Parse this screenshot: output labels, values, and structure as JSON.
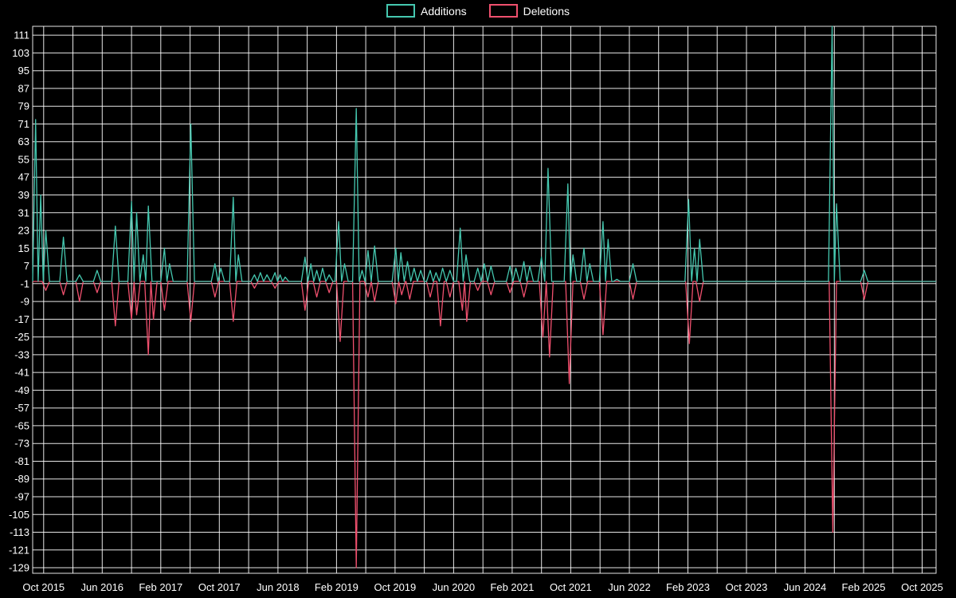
{
  "colors": {
    "background": "#000000",
    "grid": "#ffffff",
    "text": "#ffffff",
    "additions": "#45c8b0",
    "deletions": "#f0506e"
  },
  "chart_data": {
    "type": "line",
    "title": "",
    "xlabel": "",
    "ylabel": "",
    "x_unit": "months since Oct 2015",
    "grid": true,
    "legend_position": "top-center",
    "background": "#000000",
    "grid_color": "#ffffff",
    "text_color": "#ffffff",
    "x_range": [
      -1.5,
      121.9
    ],
    "y_range": [
      -131.5,
      115
    ],
    "x_grid": {
      "start": 0,
      "end": 120,
      "step": 4
    },
    "x_tick_months": [
      0,
      8,
      16,
      24,
      32,
      40,
      48,
      56,
      64,
      72,
      80,
      88,
      96,
      104,
      112,
      120
    ],
    "x_tick_labels": [
      "Oct 2015",
      "Jun 2016",
      "Feb 2017",
      "Oct 2017",
      "Jun 2018",
      "Feb 2019",
      "Oct 2019",
      "Jun 2020",
      "Feb 2021",
      "Oct 2021",
      "Jun 2022",
      "Feb 2023",
      "Oct 2023",
      "Jun 2024",
      "Feb 2025",
      "Oct 2025"
    ],
    "y_ticks": [
      111,
      103,
      95,
      87,
      79,
      71,
      63,
      55,
      47,
      39,
      31,
      23,
      15,
      7,
      -1,
      -9,
      -17,
      -25,
      -33,
      -41,
      -49,
      -57,
      -65,
      -73,
      -81,
      -89,
      -97,
      -105,
      -113,
      -121,
      -129
    ],
    "baseline": 0,
    "series": [
      {
        "name": "Additions",
        "color": "#45c8b0",
        "points": [
          [
            -1.1,
            73
          ],
          [
            -0.4,
            39
          ],
          [
            0.3,
            23
          ],
          [
            2.7,
            20
          ],
          [
            4.9,
            3
          ],
          [
            7.3,
            5
          ],
          [
            9.8,
            25
          ],
          [
            12.0,
            36
          ],
          [
            12.7,
            31
          ],
          [
            13.6,
            12
          ],
          [
            14.3,
            34
          ],
          [
            16.5,
            15
          ],
          [
            17.2,
            8
          ],
          [
            20.1,
            71
          ],
          [
            23.4,
            8
          ],
          [
            24.2,
            6
          ],
          [
            25.9,
            38
          ],
          [
            26.6,
            12
          ],
          [
            28.8,
            3
          ],
          [
            29.6,
            4
          ],
          [
            30.5,
            3
          ],
          [
            31.6,
            4
          ],
          [
            32.3,
            3
          ],
          [
            33.0,
            2
          ],
          [
            35.7,
            11
          ],
          [
            36.5,
            8
          ],
          [
            37.3,
            5
          ],
          [
            38.1,
            6
          ],
          [
            39.0,
            3
          ],
          [
            40.3,
            27
          ],
          [
            41.1,
            8
          ],
          [
            42.7,
            78
          ],
          [
            43.5,
            5
          ],
          [
            44.3,
            14
          ],
          [
            45.2,
            16
          ],
          [
            48.1,
            15
          ],
          [
            48.8,
            13
          ],
          [
            49.7,
            9
          ],
          [
            50.6,
            6
          ],
          [
            51.5,
            5
          ],
          [
            52.8,
            5
          ],
          [
            53.6,
            4
          ],
          [
            54.5,
            6
          ],
          [
            55.5,
            5
          ],
          [
            56.9,
            24
          ],
          [
            57.7,
            12
          ],
          [
            59.3,
            6
          ],
          [
            60.2,
            8
          ],
          [
            61.1,
            7
          ],
          [
            63.7,
            7
          ],
          [
            64.5,
            6
          ],
          [
            65.6,
            9
          ],
          [
            66.4,
            7
          ],
          [
            68.0,
            11
          ],
          [
            68.9,
            51
          ],
          [
            71.6,
            44
          ],
          [
            72.3,
            12
          ],
          [
            73.8,
            15
          ],
          [
            74.6,
            8
          ],
          [
            76.4,
            27
          ],
          [
            77.1,
            19
          ],
          [
            78.3,
            1
          ],
          [
            80.5,
            8
          ],
          [
            88.1,
            37
          ],
          [
            88.9,
            15
          ],
          [
            89.6,
            19
          ],
          [
            107.7,
            115
          ],
          [
            108.3,
            35
          ],
          [
            112.1,
            5
          ]
        ]
      },
      {
        "name": "Deletions",
        "color": "#f0506e",
        "points": [
          [
            0.3,
            -4
          ],
          [
            2.7,
            -6
          ],
          [
            4.9,
            -9
          ],
          [
            7.3,
            -5
          ],
          [
            9.8,
            -20
          ],
          [
            12.0,
            -17
          ],
          [
            12.7,
            -15
          ],
          [
            14.3,
            -33
          ],
          [
            15.0,
            -17
          ],
          [
            16.5,
            -13
          ],
          [
            20.1,
            -18
          ],
          [
            23.4,
            -7
          ],
          [
            25.9,
            -18
          ],
          [
            28.8,
            -3
          ],
          [
            31.6,
            -3
          ],
          [
            35.7,
            -13
          ],
          [
            37.3,
            -7
          ],
          [
            39.0,
            -5
          ],
          [
            40.5,
            -27
          ],
          [
            42.7,
            -129
          ],
          [
            44.3,
            -7
          ],
          [
            45.2,
            -9
          ],
          [
            48.1,
            -10
          ],
          [
            48.9,
            -6
          ],
          [
            50.0,
            -8
          ],
          [
            52.8,
            -7
          ],
          [
            54.2,
            -20
          ],
          [
            55.5,
            -7
          ],
          [
            57.2,
            -13
          ],
          [
            57.8,
            -18
          ],
          [
            59.3,
            -4
          ],
          [
            61.1,
            -6
          ],
          [
            63.7,
            -5
          ],
          [
            65.6,
            -7
          ],
          [
            68.2,
            -25
          ],
          [
            69.1,
            -34
          ],
          [
            71.8,
            -46
          ],
          [
            73.8,
            -8
          ],
          [
            76.4,
            -24
          ],
          [
            80.5,
            -8
          ],
          [
            88.2,
            -28
          ],
          [
            89.6,
            -9
          ],
          [
            107.8,
            -113
          ],
          [
            112.1,
            -8
          ]
        ]
      }
    ]
  }
}
